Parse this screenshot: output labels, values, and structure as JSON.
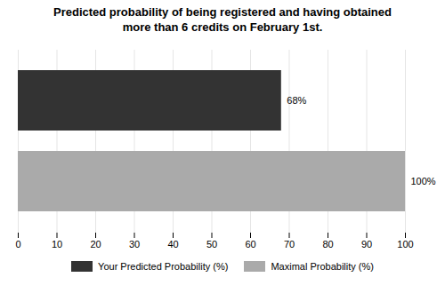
{
  "chart_data": {
    "type": "bar",
    "orientation": "horizontal",
    "title": "Predicted probability of being registered and having obtained\nmore than 6 credits on February 1st.",
    "categories": [
      "Your Predicted Probability (%)",
      "Maximal Probability (%)"
    ],
    "values": [
      68,
      100
    ],
    "value_labels": [
      "68%",
      "100%"
    ],
    "data_labels": true,
    "colors": [
      "#333333",
      "#aaaaaa"
    ],
    "xlim": [
      0,
      100
    ],
    "xticks": [
      0,
      10,
      20,
      30,
      40,
      50,
      60,
      70,
      80,
      90,
      100
    ],
    "grid": true,
    "legend": "bottom",
    "tick_labels": "x"
  }
}
